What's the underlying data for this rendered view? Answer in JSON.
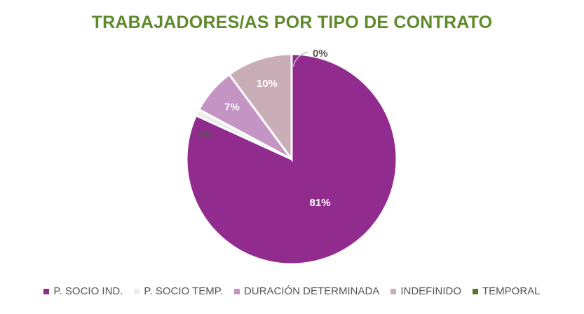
{
  "chart_data": {
    "type": "pie",
    "title": "TRABAJADORES/AS POR TIPO DE CONTRATO",
    "slices": [
      {
        "label": "P. SOCIO IND.",
        "value": 81,
        "display": "81%",
        "color": "#912b8e"
      },
      {
        "label": "P. SOCIO TEMP.",
        "value": 1,
        "display": "1%",
        "color": "#ececec"
      },
      {
        "label": "DURACIÓN DETERMINADA",
        "value": 7,
        "display": "7%",
        "color": "#c394c4"
      },
      {
        "label": "INDEFINIDO",
        "value": 10,
        "display": "10%",
        "color": "#c9adb7"
      },
      {
        "label": "TEMPORAL",
        "value": 0,
        "display": "0%",
        "color": "#4f7a28"
      }
    ],
    "legend_position": "bottom"
  }
}
